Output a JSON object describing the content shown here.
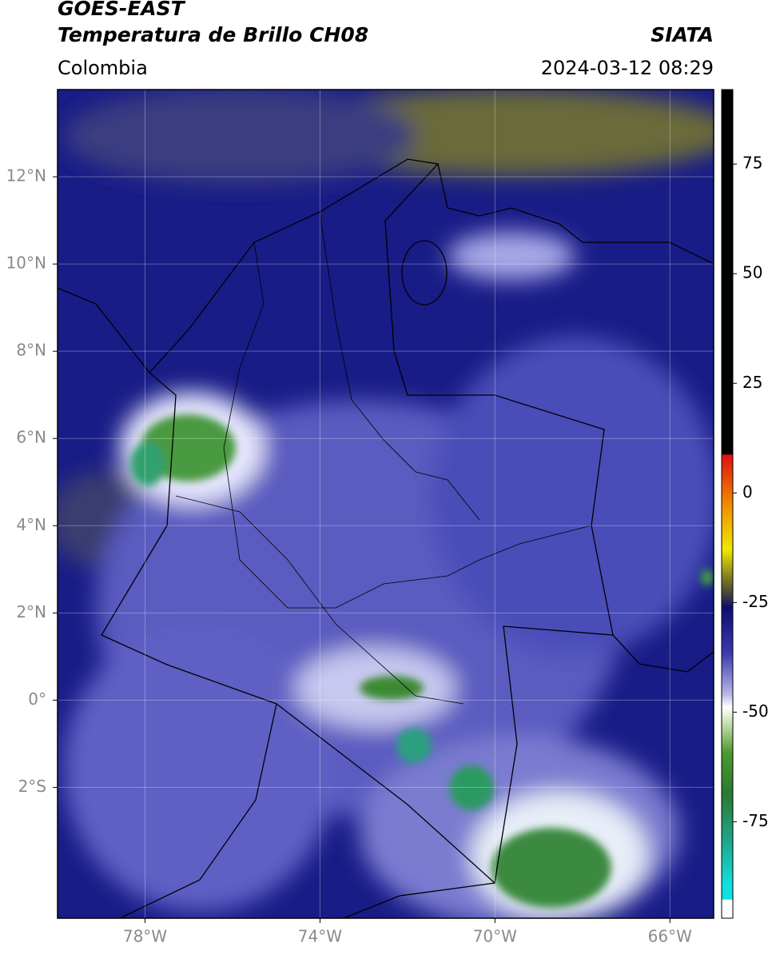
{
  "header": {
    "satellite": "GOES-EAST",
    "product": "Temperatura de Brillo CH08",
    "source": "SIATA",
    "region": "Colombia",
    "datetime": "2024-03-12 08:29"
  },
  "map": {
    "lonlim": [
      -80,
      -65
    ],
    "latlim": [
      -5,
      14
    ],
    "grid": true,
    "xticks": [
      {
        "value": -78,
        "label": "78°W"
      },
      {
        "value": -74,
        "label": "74°W"
      },
      {
        "value": -70,
        "label": "70°W"
      },
      {
        "value": -66,
        "label": "66°W"
      }
    ],
    "yticks": [
      {
        "value": 12,
        "label": "12°N"
      },
      {
        "value": 10,
        "label": "10°N"
      },
      {
        "value": 8,
        "label": "8°N"
      },
      {
        "value": 6,
        "label": "6°N"
      },
      {
        "value": 4,
        "label": "4°N"
      },
      {
        "value": 2,
        "label": "2°N"
      },
      {
        "value": 0,
        "label": "0°"
      },
      {
        "value": -2,
        "label": "2°S"
      }
    ]
  },
  "colorbar": {
    "clim": [
      -97,
      92
    ],
    "ticks": [
      75,
      50,
      25,
      0,
      -25,
      -50,
      -75
    ]
  }
}
